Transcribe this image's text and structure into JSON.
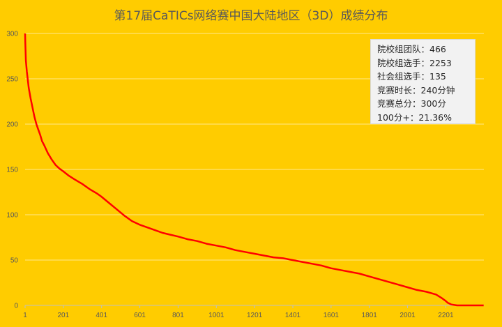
{
  "chart_data": {
    "type": "line",
    "title": "第17届CaTICs网络赛中国大陆地区（3D）成绩分布",
    "xlabel": "",
    "ylabel": "",
    "xlim": [
      1,
      2400
    ],
    "ylim": [
      0,
      300
    ],
    "x_ticks": [
      "1",
      "201",
      "401",
      "601",
      "801",
      "1001",
      "1201",
      "1401",
      "1601",
      "1801",
      "2001",
      "2201"
    ],
    "y_ticks": [
      "0",
      "50",
      "100",
      "150",
      "200",
      "250",
      "300"
    ],
    "grid": "horizontal",
    "legend": "none",
    "line_color": "#FF0000",
    "series": [
      {
        "x": [
          1,
          2,
          5,
          10,
          20,
          30,
          40,
          50,
          60,
          70,
          80,
          90,
          100,
          120,
          140,
          160,
          180,
          200,
          230,
          260,
          300,
          340,
          380,
          400,
          440,
          480,
          520,
          560,
          600,
          640,
          680,
          720,
          760,
          800,
          850,
          900,
          950,
          1000,
          1050,
          1100,
          1150,
          1200,
          1250,
          1300,
          1350,
          1400,
          1450,
          1500,
          1550,
          1600,
          1650,
          1700,
          1750,
          1800,
          1850,
          1900,
          1950,
          2000,
          2050,
          2100,
          2150,
          2180,
          2200,
          2210,
          2230,
          2260,
          2300,
          2350,
          2399
        ],
        "values": [
          300,
          290,
          270,
          258,
          240,
          228,
          218,
          208,
          200,
          194,
          188,
          181,
          177,
          168,
          161,
          155,
          151,
          148,
          143,
          139,
          134,
          128,
          123,
          120,
          113,
          106,
          99,
          93,
          89,
          86,
          83,
          80,
          78,
          76,
          73,
          71,
          68,
          66,
          64,
          61,
          59,
          57,
          55,
          53,
          52,
          50,
          48,
          46,
          44,
          41,
          39,
          37,
          35,
          32,
          29,
          26,
          23,
          20,
          17,
          15,
          12,
          8,
          5,
          3,
          1,
          0,
          0,
          0,
          0
        ]
      }
    ]
  },
  "info_box": [
    "院校组团队：466",
    "院校组选手：2253",
    "社会组选手：135",
    "竞赛时长：240分钟",
    "竞赛总分：300分",
    "100分+：21.36%"
  ]
}
